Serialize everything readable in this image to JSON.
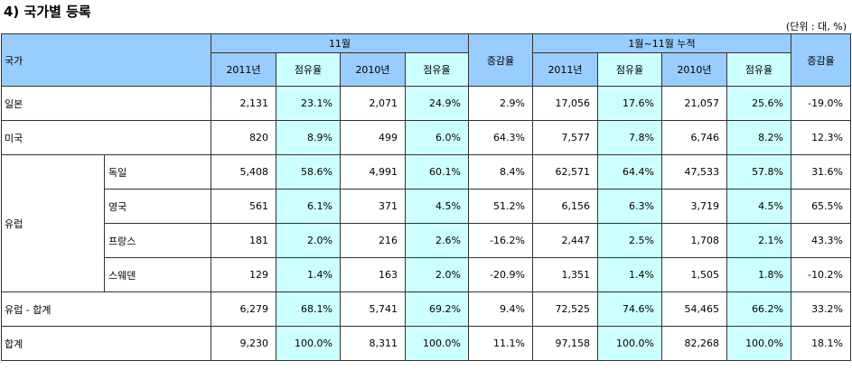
{
  "title": "4) 국가별 등록",
  "unit": "(단위 : 대, %)",
  "header": {
    "country": "국가",
    "month_group": "11월",
    "cum_group": "1월~11월 누적",
    "y2011": "2011년",
    "y2010": "2010년",
    "share": "점유율",
    "change": "증감율"
  },
  "rows": {
    "japan": {
      "label": "일본",
      "m11": "2,131",
      "ms11": "23.1%",
      "m10": "2,071",
      "ms10": "24.9%",
      "mc": "2.9%",
      "c11": "17,056",
      "cs11": "17.6%",
      "c10": "21,057",
      "cs10": "25.6%",
      "cc": "-19.0%"
    },
    "usa": {
      "label": "미국",
      "m11": "820",
      "ms11": "8.9%",
      "m10": "499",
      "ms10": "6.0%",
      "mc": "64.3%",
      "c11": "7,577",
      "cs11": "7.8%",
      "c10": "6,746",
      "cs10": "8.2%",
      "cc": "12.3%"
    },
    "europe_label": "유럽",
    "germany": {
      "label": "독일",
      "m11": "5,408",
      "ms11": "58.6%",
      "m10": "4,991",
      "ms10": "60.1%",
      "mc": "8.4%",
      "c11": "62,571",
      "cs11": "64.4%",
      "c10": "47,533",
      "cs10": "57.8%",
      "cc": "31.6%"
    },
    "uk": {
      "label": "영국",
      "m11": "561",
      "ms11": "6.1%",
      "m10": "371",
      "ms10": "4.5%",
      "mc": "51.2%",
      "c11": "6,156",
      "cs11": "6.3%",
      "c10": "3,719",
      "cs10": "4.5%",
      "cc": "65.5%"
    },
    "france": {
      "label": "프랑스",
      "m11": "181",
      "ms11": "2.0%",
      "m10": "216",
      "ms10": "2.6%",
      "mc": "-16.2%",
      "c11": "2,447",
      "cs11": "2.5%",
      "c10": "1,708",
      "cs10": "2.1%",
      "cc": "43.3%"
    },
    "sweden": {
      "label": "스웨덴",
      "m11": "129",
      "ms11": "1.4%",
      "m10": "163",
      "ms10": "2.0%",
      "mc": "-20.9%",
      "c11": "1,351",
      "cs11": "1.4%",
      "c10": "1,505",
      "cs10": "1.8%",
      "cc": "-10.2%"
    },
    "eu_total": {
      "label": "유럽 - 합계",
      "m11": "6,279",
      "ms11": "68.1%",
      "m10": "5,741",
      "ms10": "69.2%",
      "mc": "9.4%",
      "c11": "72,525",
      "cs11": "74.6%",
      "c10": "54,465",
      "cs10": "66.2%",
      "cc": "33.2%"
    },
    "total": {
      "label": "합계",
      "m11": "9,230",
      "ms11": "100.0%",
      "m10": "8,311",
      "ms10": "100.0%",
      "mc": "11.1%",
      "c11": "97,158",
      "cs11": "100.0%",
      "c10": "82,268",
      "cs10": "100.0%",
      "cc": "18.1%"
    }
  },
  "colors": {
    "header_blue": "#99ccff",
    "share_cyan": "#ccffff"
  }
}
